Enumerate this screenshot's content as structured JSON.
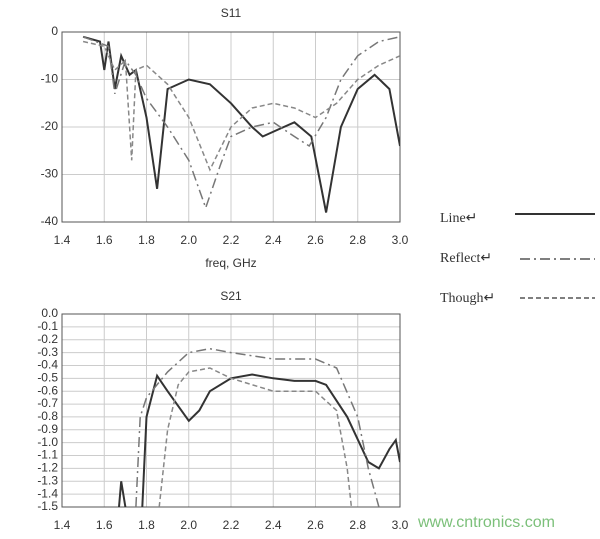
{
  "chart_data": [
    {
      "type": "line",
      "title": "S11",
      "x_label": "freq, GHz",
      "xlim": [
        1.4,
        3.0
      ],
      "ylim": [
        -40,
        0
      ],
      "xticks": [
        1.4,
        1.6,
        1.8,
        {
          "value": 2,
          "label": "2.0"
        },
        2.2,
        2.4,
        2.6,
        2.8,
        {
          "value": 3,
          "label": "3.0"
        }
      ],
      "yticks": [
        0,
        -10,
        -20,
        -30,
        -40
      ],
      "grid": true,
      "series": [
        {
          "name": "Line↵",
          "color": "#333333",
          "dash": "solid",
          "x": [
            1.5,
            1.58,
            1.6,
            1.62,
            1.65,
            1.68,
            1.72,
            1.75,
            1.8,
            1.85,
            1.9,
            2.0,
            2.1,
            2.2,
            2.3,
            2.35,
            2.45,
            2.5,
            2.58,
            2.65,
            2.72,
            2.8,
            2.88,
            2.95,
            3.0
          ],
          "values": [
            -1,
            -2,
            -8,
            -2,
            -12,
            -5,
            -9,
            -8,
            -18,
            -33,
            -12,
            -10,
            -11,
            -15,
            -20,
            -22,
            -20,
            -19,
            -22,
            -38,
            -20,
            -12,
            -9,
            -12,
            -24
          ]
        },
        {
          "name": "Reflect↵",
          "color": "#777777",
          "dash": "dashdot",
          "x": [
            1.5,
            1.62,
            1.65,
            1.7,
            1.75,
            1.8,
            1.9,
            2.0,
            2.08,
            2.15,
            2.2,
            2.3,
            2.4,
            2.5,
            2.57,
            2.65,
            2.72,
            2.8,
            2.9,
            3.0
          ],
          "values": [
            -1,
            -3,
            -13,
            -6,
            -9,
            -14,
            -20,
            -27,
            -37,
            -28,
            -22,
            -20,
            -19,
            -22,
            -24,
            -18,
            -10,
            -5,
            -2,
            -1
          ]
        },
        {
          "name": "Though↵",
          "color": "#888888",
          "dash": "dash",
          "x": [
            1.5,
            1.6,
            1.65,
            1.7,
            1.73,
            1.75,
            1.8,
            1.9,
            2.0,
            2.1,
            2.2,
            2.3,
            2.4,
            2.5,
            2.6,
            2.7,
            2.8,
            2.9,
            3.0
          ],
          "values": [
            -2,
            -3,
            -8,
            -6,
            -27,
            -8,
            -7,
            -11,
            -18,
            -29,
            -20,
            -16,
            -15,
            -16,
            -18,
            -15,
            -10,
            -7,
            -5
          ]
        }
      ]
    },
    {
      "type": "line",
      "title": "S21",
      "xlim": [
        1.4,
        3.0
      ],
      "ylim": [
        -1.5,
        0
      ],
      "xticks": [
        1.4,
        1.6,
        1.8,
        {
          "value": 2,
          "label": "2.0"
        },
        2.2,
        2.4,
        2.6,
        2.8,
        {
          "value": 3,
          "label": "3.0"
        }
      ],
      "yticks": [
        {
          "value": 0,
          "label": "0.0"
        },
        -0.1,
        -0.2,
        -0.3,
        -0.4,
        -0.5,
        -0.6,
        -0.7,
        -0.8,
        -0.9,
        {
          "value": -1,
          "label": "-1.0"
        },
        -1.1,
        -1.2,
        -1.3,
        -1.4,
        -1.5
      ],
      "grid": true,
      "series": [
        {
          "color": "#333333",
          "dash": "solid",
          "x": [
            1.67,
            1.68,
            1.7,
            1.75,
            1.78,
            1.8,
            1.85,
            1.9,
            2.0,
            2.05,
            2.1,
            2.2,
            2.3,
            2.4,
            2.5,
            2.6,
            2.65,
            2.75,
            2.85,
            2.9,
            2.95,
            2.98,
            3.0
          ],
          "values": [
            -1.5,
            -1.3,
            -1.5,
            null,
            -1.5,
            -0.8,
            -0.48,
            -0.6,
            -0.83,
            -0.75,
            -0.6,
            -0.5,
            -0.47,
            -0.5,
            -0.52,
            -0.52,
            -0.55,
            -0.8,
            -1.15,
            -1.2,
            -1.05,
            -0.98,
            -1.15
          ]
        },
        {
          "color": "#777777",
          "dash": "dashdot",
          "x": [
            1.75,
            1.77,
            1.8,
            1.9,
            2.0,
            2.1,
            2.2,
            2.4,
            2.6,
            2.7,
            2.8,
            2.85,
            2.9
          ],
          "values": [
            -1.5,
            -0.8,
            -0.65,
            -0.45,
            -0.3,
            -0.27,
            -0.3,
            -0.35,
            -0.35,
            -0.42,
            -0.8,
            -1.2,
            -1.5
          ]
        },
        {
          "color": "#888888",
          "dash": "dash",
          "x": [
            1.86,
            1.9,
            1.95,
            2.0,
            2.1,
            2.2,
            2.4,
            2.6,
            2.7,
            2.75,
            2.77
          ],
          "values": [
            -1.5,
            -0.9,
            -0.55,
            -0.45,
            -0.42,
            -0.5,
            -0.6,
            -0.6,
            -0.75,
            -1.2,
            -1.5
          ]
        }
      ]
    }
  ],
  "watermark": "www.cntronics.com"
}
